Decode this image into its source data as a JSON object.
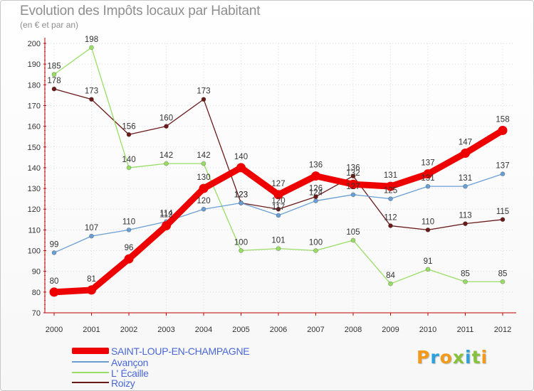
{
  "title": "Evolution des Impôts locaux par Habitant",
  "subtitle": "(en € et par an)",
  "logo": {
    "letters": [
      "P",
      "r",
      "o",
      "x",
      "i",
      "t",
      "i"
    ],
    "colors": [
      "#f29a1a",
      "#2ca0dc",
      "#f29a1a",
      "#86c23c",
      "#2ca0dc",
      "#86c23c",
      "#f29a1a"
    ]
  },
  "chart_data": {
    "type": "line",
    "categories": [
      "2000",
      "2001",
      "2002",
      "2003",
      "2004",
      "2005",
      "2006",
      "2007",
      "2008",
      "2009",
      "2010",
      "2011",
      "2012"
    ],
    "ylim": [
      70,
      200
    ],
    "yticks": [
      70,
      80,
      90,
      100,
      110,
      120,
      130,
      140,
      150,
      160,
      170,
      180,
      190,
      200
    ],
    "grid": true,
    "legend_position": "bottom-left",
    "series": [
      {
        "name": "Roizy",
        "color": "#6b1a1a",
        "values": [
          178,
          173,
          156,
          160,
          173,
          123,
          120,
          126,
          136,
          112,
          110,
          113,
          115
        ],
        "labels": [
          "178",
          "173",
          "156",
          "160",
          "173",
          "123",
          "120",
          "126",
          "136",
          "112",
          "110",
          "113",
          "115"
        ]
      },
      {
        "name": "L' Écaille",
        "color": "#99dd66",
        "values": [
          185,
          198,
          140,
          142,
          142,
          100,
          101,
          100,
          105,
          84,
          91,
          85,
          85
        ],
        "labels": [
          "185",
          "198",
          "140",
          "142",
          "142",
          "100",
          "101",
          "100",
          "105",
          "84",
          "91",
          "85",
          "85"
        ]
      },
      {
        "name": "Avançon",
        "color": "#6a9fd4",
        "values": [
          99,
          107,
          110,
          114,
          120,
          123,
          117,
          124,
          127,
          125,
          131,
          131,
          137
        ],
        "labels": [
          "99",
          "107",
          "110",
          "114",
          "120",
          "123",
          "117",
          "124",
          "127",
          "125",
          "131",
          "131",
          "137"
        ]
      },
      {
        "name": "SAINT-LOUP-EN-CHAMPAGNE",
        "color": "#ee0000",
        "values": [
          80,
          81,
          96,
          112,
          130,
          140,
          127,
          136,
          132,
          131,
          137,
          147,
          158
        ],
        "labels": [
          "80",
          "81",
          "96",
          "112",
          "130",
          "140",
          "127",
          "136",
          "132",
          "131",
          "137",
          "147",
          "158"
        ]
      }
    ],
    "legend": [
      "SAINT-LOUP-EN-CHAMPAGNE",
      "Avançon",
      "L' Écaille",
      "Roizy"
    ]
  }
}
